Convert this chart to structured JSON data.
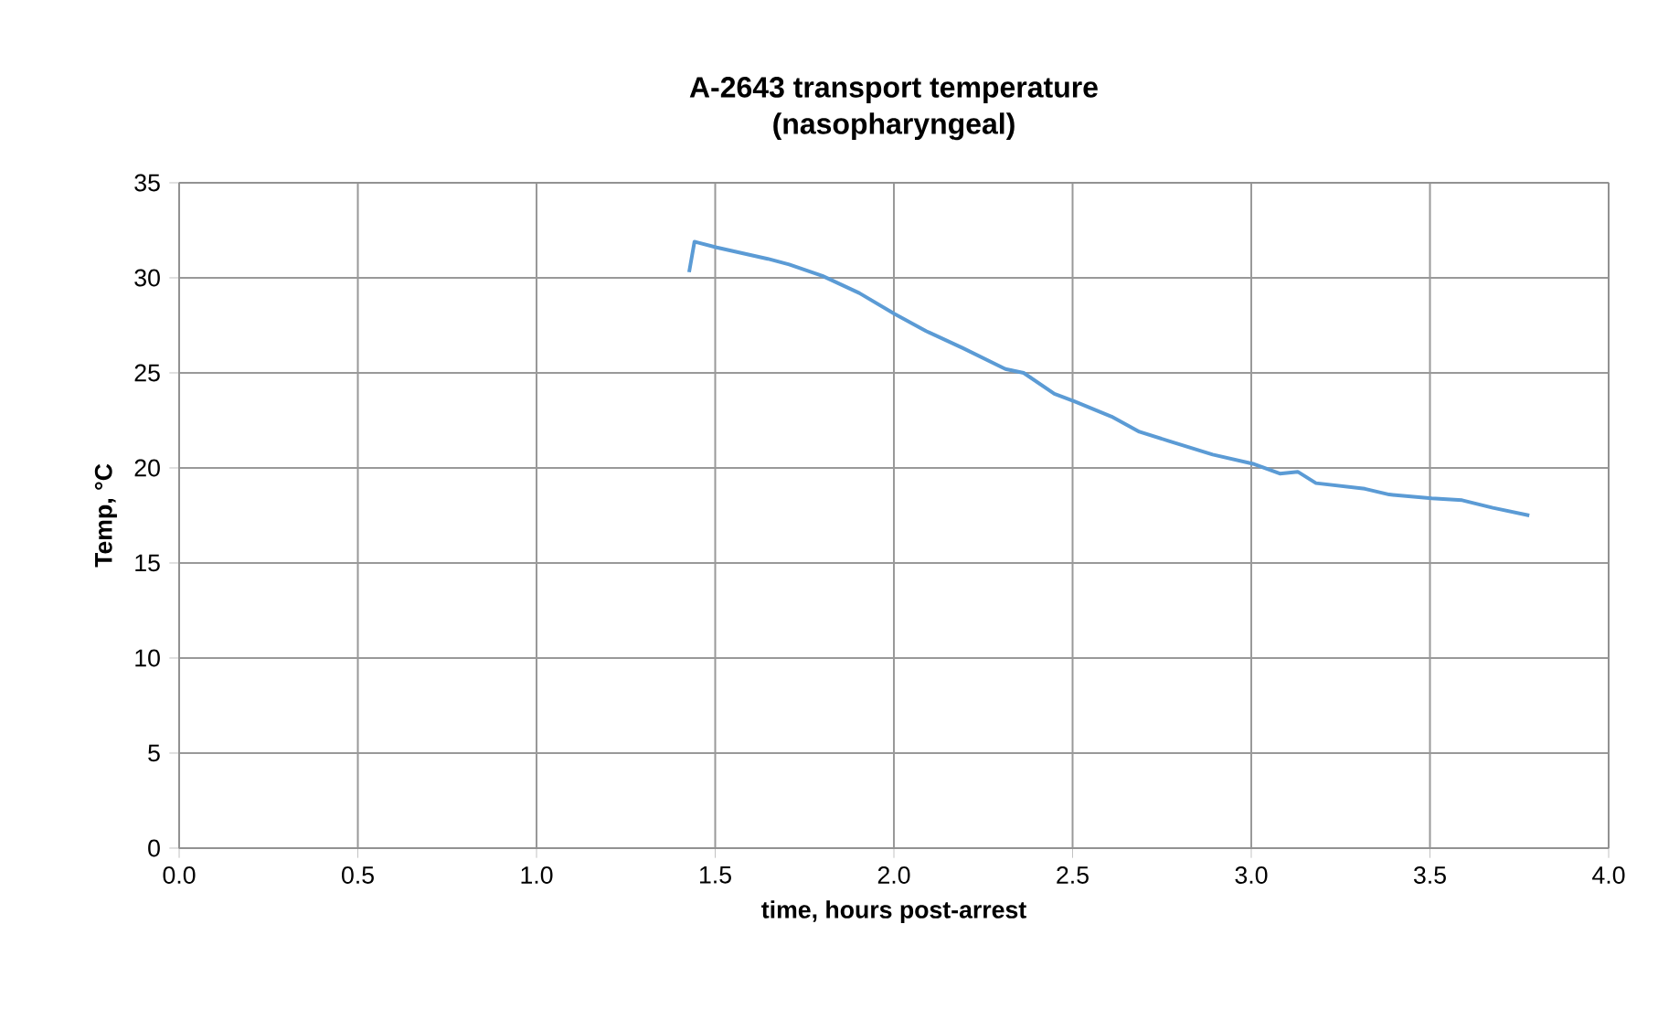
{
  "chart_data": {
    "type": "line",
    "title": "A-2643 transport temperature",
    "subtitle": "(nasopharyngeal)",
    "xlabel": "time, hours post-arrest",
    "ylabel": "Temp, °C",
    "x": [
      1.427,
      1.442,
      1.504,
      1.647,
      1.707,
      1.8,
      1.903,
      2.002,
      2.09,
      2.193,
      2.312,
      2.363,
      2.449,
      2.505,
      2.609,
      2.687,
      2.772,
      2.892,
      3.008,
      3.08,
      3.13,
      3.181,
      3.318,
      3.386,
      3.505,
      3.59,
      3.676,
      3.778
    ],
    "series": [
      {
        "color": "#5b9bd5",
        "values": [
          30.3,
          31.9,
          31.6,
          31.0,
          30.7,
          30.1,
          29.2,
          28.1,
          27.2,
          26.3,
          25.2,
          25.0,
          23.9,
          23.5,
          22.7,
          21.9,
          21.4,
          20.7,
          20.2,
          19.7,
          19.8,
          19.2,
          18.9,
          18.6,
          18.4,
          18.3,
          17.9,
          17.5
        ]
      }
    ],
    "xlim": [
      0,
      4
    ],
    "xticks": [
      {
        "value": 0,
        "label": "0.0"
      },
      {
        "value": 0.5,
        "label": "0.5"
      },
      {
        "value": 1,
        "label": "1.0"
      },
      {
        "value": 1.5,
        "label": "1.5"
      },
      {
        "value": 2,
        "label": "2.0"
      },
      {
        "value": 2.5,
        "label": "2.5"
      },
      {
        "value": 3,
        "label": "3.0"
      },
      {
        "value": 3.5,
        "label": "3.5"
      },
      {
        "value": 4,
        "label": "4.0"
      }
    ],
    "ylim": [
      0,
      35
    ],
    "yticks": [
      0,
      5,
      10,
      15,
      20,
      25,
      30,
      35
    ],
    "grid": true,
    "marker": "none",
    "line_style": "solid"
  }
}
